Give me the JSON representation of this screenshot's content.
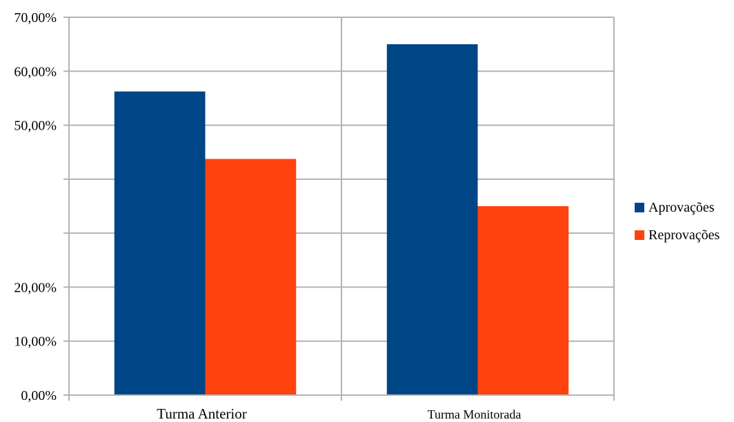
{
  "chart_data": {
    "type": "bar",
    "categories": [
      "Turma Anterior",
      "Turma Monitorada"
    ],
    "series": [
      {
        "name": "Aprovações",
        "color": "#004586",
        "values": [
          56.25,
          65.0
        ]
      },
      {
        "name": "Reprovações",
        "color": "#ff420e",
        "values": [
          43.75,
          35.0
        ]
      }
    ],
    "ylim": [
      0,
      70
    ],
    "y_ticks": [
      0,
      10,
      20,
      30,
      40,
      50,
      60,
      70
    ],
    "y_tick_labels": [
      "0,00%",
      "10,00%",
      "20,00%",
      "",
      "",
      "50,00%",
      "60,00%",
      "70,00%"
    ],
    "grid": true,
    "legend_position": "right"
  }
}
